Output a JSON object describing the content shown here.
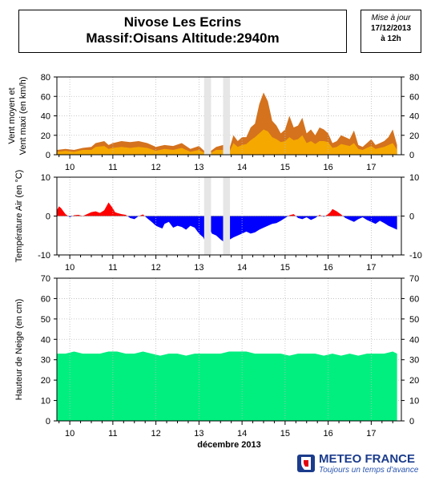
{
  "header": {
    "title_line1": "Nivose Les Ecrins",
    "title_line2": "Massif:Oisans Altitude:2940m",
    "update_label": "Mise à jour",
    "update_date": "17/12/2013",
    "update_time": "à 12h"
  },
  "brand": {
    "name": "METEO FRANCE",
    "tagline": "Toujours un temps d'avance"
  },
  "chart_data": [
    {
      "type": "area",
      "ylabel": "Vent moyen et Vent maxi (en km/h)",
      "ylim": [
        0,
        80
      ],
      "yticks": [
        0,
        20,
        40,
        60,
        80
      ],
      "x_tick_labels": [
        "10",
        "11",
        "12",
        "13",
        "14",
        "15",
        "16",
        "17"
      ],
      "x_tick_days": [
        10,
        11,
        12,
        13,
        14,
        15,
        16,
        17
      ],
      "xlim": [
        9.7,
        17.7
      ],
      "grid": true,
      "missing_intervals": [
        [
          13.12,
          13.28
        ],
        [
          13.56,
          13.72
        ]
      ],
      "series": [
        {
          "colors": {
            "fill": "#d4721e"
          },
          "x": [
            9.7,
            9.9,
            10.1,
            10.3,
            10.5,
            10.6,
            10.8,
            10.9,
            11.0,
            11.2,
            11.4,
            11.6,
            11.8,
            12.0,
            12.2,
            12.4,
            12.6,
            12.8,
            13.0,
            13.12,
            13.28,
            13.4,
            13.56,
            13.72,
            13.8,
            13.9,
            14.0,
            14.1,
            14.2,
            14.3,
            14.4,
            14.5,
            14.6,
            14.7,
            14.8,
            14.9,
            15.0,
            15.1,
            15.2,
            15.3,
            15.4,
            15.5,
            15.6,
            15.7,
            15.8,
            15.9,
            16.0,
            16.1,
            16.2,
            16.3,
            16.4,
            16.5,
            16.6,
            16.7,
            16.8,
            16.9,
            17.0,
            17.1,
            17.2,
            17.3,
            17.4,
            17.5,
            17.6
          ],
          "values": [
            5,
            6,
            5,
            7,
            8,
            12,
            14,
            10,
            12,
            14,
            13,
            14,
            12,
            8,
            10,
            9,
            12,
            6,
            9,
            4,
            4,
            8,
            10,
            8,
            20,
            14,
            18,
            18,
            28,
            32,
            52,
            64,
            55,
            35,
            30,
            22,
            26,
            40,
            28,
            30,
            38,
            22,
            26,
            20,
            28,
            26,
            22,
            12,
            14,
            20,
            18,
            16,
            25,
            10,
            8,
            12,
            16,
            10,
            12,
            14,
            18,
            26,
            10
          ]
        },
        {
          "colors": {
            "fill": "#f5a800"
          },
          "x": [
            9.7,
            9.9,
            10.1,
            10.3,
            10.5,
            10.6,
            10.8,
            10.9,
            11.0,
            11.2,
            11.4,
            11.6,
            11.8,
            12.0,
            12.2,
            12.4,
            12.6,
            12.8,
            13.0,
            13.12,
            13.28,
            13.4,
            13.56,
            13.72,
            13.8,
            13.9,
            14.0,
            14.1,
            14.2,
            14.3,
            14.4,
            14.5,
            14.6,
            14.7,
            14.8,
            14.9,
            15.0,
            15.1,
            15.2,
            15.3,
            15.4,
            15.5,
            15.6,
            15.7,
            15.8,
            15.9,
            16.0,
            16.1,
            16.2,
            16.3,
            16.4,
            16.5,
            16.6,
            16.7,
            16.8,
            16.9,
            17.0,
            17.1,
            17.2,
            17.3,
            17.4,
            17.5,
            17.6
          ],
          "values": [
            3,
            4,
            3,
            5,
            5,
            8,
            9,
            6,
            7,
            8,
            7,
            8,
            7,
            4,
            6,
            5,
            7,
            3,
            5,
            2,
            2,
            5,
            5,
            4,
            12,
            8,
            10,
            11,
            15,
            18,
            22,
            26,
            24,
            18,
            16,
            13,
            14,
            18,
            15,
            16,
            20,
            12,
            14,
            11,
            14,
            14,
            13,
            7,
            8,
            11,
            10,
            9,
            12,
            6,
            5,
            7,
            9,
            6,
            7,
            8,
            10,
            12,
            5
          ]
        }
      ]
    },
    {
      "type": "area",
      "ylabel": "Température Air (en °C)",
      "ylim": [
        -10,
        10
      ],
      "yticks": [
        -10,
        0,
        10
      ],
      "x_tick_labels": [
        "10",
        "11",
        "12",
        "13",
        "14",
        "15",
        "16",
        "17"
      ],
      "x_tick_days": [
        10,
        11,
        12,
        13,
        14,
        15,
        16,
        17
      ],
      "xlim": [
        9.7,
        17.7
      ],
      "grid": true,
      "missing_intervals": [
        [
          13.12,
          13.28
        ],
        [
          13.56,
          13.72
        ]
      ],
      "colors": {
        "positive": "#ff0000",
        "negative": "#0000ff"
      },
      "x": [
        9.7,
        9.75,
        9.8,
        9.9,
        10.0,
        10.1,
        10.2,
        10.3,
        10.4,
        10.5,
        10.6,
        10.7,
        10.8,
        10.9,
        11.0,
        11.05,
        11.1,
        11.2,
        11.3,
        11.4,
        11.5,
        11.6,
        11.7,
        11.8,
        11.9,
        12.0,
        12.1,
        12.15,
        12.2,
        12.3,
        12.4,
        12.5,
        12.6,
        12.7,
        12.8,
        12.9,
        13.0,
        13.1,
        13.12,
        13.28,
        13.3,
        13.4,
        13.5,
        13.56,
        13.72,
        13.8,
        13.9,
        14.0,
        14.1,
        14.2,
        14.3,
        14.4,
        14.5,
        14.6,
        14.7,
        14.8,
        14.9,
        15.0,
        15.1,
        15.2,
        15.3,
        15.4,
        15.5,
        15.6,
        15.7,
        15.8,
        15.9,
        16.0,
        16.05,
        16.1,
        16.2,
        16.3,
        16.4,
        16.5,
        16.6,
        16.7,
        16.8,
        16.9,
        17.0,
        17.1,
        17.2,
        17.3,
        17.4,
        17.5,
        17.6
      ],
      "values": [
        1.5,
        2.5,
        2.0,
        0.5,
        -0.3,
        0.2,
        0.3,
        0.0,
        0.5,
        1.0,
        1.2,
        0.8,
        1.5,
        3.5,
        2.0,
        1.0,
        0.8,
        0.5,
        0.3,
        -0.5,
        -0.8,
        0.0,
        0.4,
        -0.6,
        -1.5,
        -2.5,
        -3.0,
        -3.2,
        -2.0,
        -1.5,
        -3.0,
        -2.5,
        -2.8,
        -3.5,
        -2.5,
        -3.0,
        -4.5,
        -5.5,
        -6.0,
        -4.0,
        -4.5,
        -5.0,
        -6.0,
        -6.5,
        -6.0,
        -5.5,
        -5.0,
        -4.5,
        -4.0,
        -4.5,
        -4.2,
        -3.5,
        -3.0,
        -2.5,
        -2.0,
        -1.8,
        -1.2,
        -0.5,
        0.2,
        0.5,
        -0.5,
        -0.8,
        -0.3,
        -1.0,
        -0.5,
        0.3,
        -0.2,
        0.5,
        1.0,
        1.8,
        1.2,
        0.4,
        -0.5,
        -1.0,
        -1.5,
        -0.8,
        -0.3,
        -1.0,
        -1.5,
        -2.0,
        -1.2,
        -1.8,
        -2.5,
        -3.0,
        -3.5
      ]
    },
    {
      "type": "area",
      "ylabel": "Hauteur de Neige (en cm)",
      "xlabel": "décembre 2013",
      "ylim": [
        0,
        70
      ],
      "yticks": [
        0,
        10,
        20,
        30,
        40,
        50,
        60,
        70
      ],
      "x_tick_labels": [
        "10",
        "11",
        "12",
        "13",
        "14",
        "15",
        "16",
        "17"
      ],
      "x_tick_days": [
        10,
        11,
        12,
        13,
        14,
        15,
        16,
        17
      ],
      "xlim": [
        9.7,
        17.7
      ],
      "grid": true,
      "colors": {
        "fill": "#00ef7f"
      },
      "x": [
        9.7,
        9.9,
        10.1,
        10.3,
        10.5,
        10.7,
        10.9,
        11.1,
        11.3,
        11.5,
        11.7,
        11.9,
        12.1,
        12.3,
        12.5,
        12.7,
        12.9,
        13.1,
        13.3,
        13.5,
        13.7,
        13.9,
        14.1,
        14.3,
        14.5,
        14.7,
        14.9,
        15.1,
        15.3,
        15.5,
        15.7,
        15.9,
        16.1,
        16.3,
        16.5,
        16.7,
        16.9,
        17.1,
        17.3,
        17.5,
        17.6
      ],
      "values": [
        33,
        33,
        34,
        33,
        33,
        33,
        34,
        34,
        33,
        33,
        34,
        33,
        32,
        33,
        33,
        32,
        33,
        33,
        33,
        33,
        34,
        34,
        34,
        33,
        33,
        33,
        33,
        32,
        33,
        33,
        33,
        32,
        33,
        32,
        33,
        32,
        33,
        33,
        33,
        34,
        33
      ]
    }
  ]
}
